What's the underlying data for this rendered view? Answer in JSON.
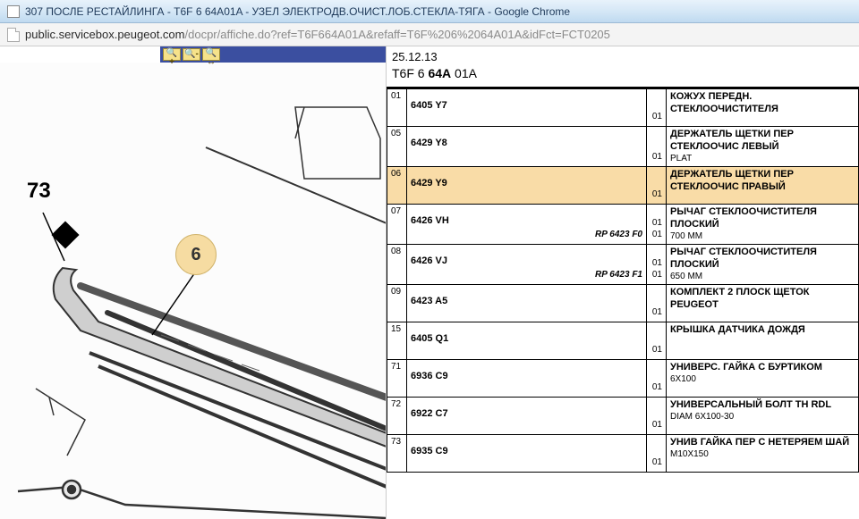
{
  "window": {
    "title": "307 ПОСЛЕ РЕСТАЙЛИНГА - T6F 6 64A01A - УЗЕЛ ЭЛЕКТРОДВ.ОЧИСТ.ЛОБ.СТЕКЛА-ТЯГА - Google Chrome"
  },
  "address": {
    "host": "public.servicebox.peugeot.com",
    "path": "/docpr/affiche.do?ref=T6F664A01A&refaff=T6F%206%2064A01A&idFct=FCT0205"
  },
  "toolbar": {
    "zoom_in": "⊕",
    "zoom_out": "⊖",
    "zoom_fit": "⊡"
  },
  "diagram": {
    "label73": "73",
    "callout6": "6"
  },
  "header": {
    "date": "25.12.13",
    "ref_prefix": "T6F 6 ",
    "ref_bold": "64A",
    "ref_suffix": " 01A"
  },
  "rows": [
    {
      "pos": "01",
      "pn": "6405 Y7",
      "rp": "",
      "qty": "01",
      "desc": "КОЖУХ ПЕРЕДН. СТЕКЛООЧИСТИТЕЛЯ",
      "sub": "",
      "hl": false
    },
    {
      "pos": "05",
      "pn": "6429 Y8",
      "rp": "",
      "qty": "01",
      "desc": "ДЕРЖАТЕЛЬ ЩЕТКИ ПЕР СТЕКЛООЧИС ЛЕВЫЙ",
      "sub": "PLAT",
      "hl": false
    },
    {
      "pos": "06",
      "pn": "6429 Y9",
      "rp": "",
      "qty": "01",
      "desc": "ДЕРЖАТЕЛЬ ЩЕТКИ ПЕР СТЕКЛООЧИС ПРАВЫЙ",
      "sub": "",
      "hl": true
    },
    {
      "pos": "07",
      "pn": "6426 VH",
      "rp": "RP 6423 F0",
      "qty": "01",
      "desc": "РЫЧАГ СТЕКЛООЧИСТИТЕЛЯ ПЛОСКИЙ",
      "sub": "700 MM",
      "hl": false
    },
    {
      "pos": "08",
      "pn": "6426 VJ",
      "rp": "RP 6423 F1",
      "qty": "01",
      "desc": "РЫЧАГ СТЕКЛООЧИСТИТЕЛЯ ПЛОСКИЙ",
      "sub": "650 MM",
      "hl": false
    },
    {
      "pos": "09",
      "pn": "6423 A5",
      "rp": "",
      "qty": "01",
      "desc": "КОМПЛЕКТ 2 ПЛОСК ЩЕТОК PEUGEOT",
      "sub": "",
      "hl": false
    },
    {
      "pos": "15",
      "pn": "6405 Q1",
      "rp": "",
      "qty": "01",
      "desc": "КРЫШКА ДАТЧИКА ДОЖДЯ",
      "sub": "",
      "hl": false
    },
    {
      "pos": "71",
      "pn": "6936 C9",
      "rp": "",
      "qty": "01",
      "desc": "УНИВЕРС. ГАЙКА С БУРТИКОМ",
      "sub": "6X100",
      "hl": false
    },
    {
      "pos": "72",
      "pn": "6922 C7",
      "rp": "",
      "qty": "01",
      "desc": "УНИВЕРСАЛЬНЫЙ БОЛТ TH RDL",
      "sub": "DIAM 6X100-30",
      "hl": false
    },
    {
      "pos": "73",
      "pn": "6935 C9",
      "rp": "",
      "qty": "01",
      "desc": "УНИВ ГАЙКА ПЕР С НЕТЕРЯЕМ ШАЙ",
      "sub": "M10X150",
      "hl": false
    }
  ]
}
